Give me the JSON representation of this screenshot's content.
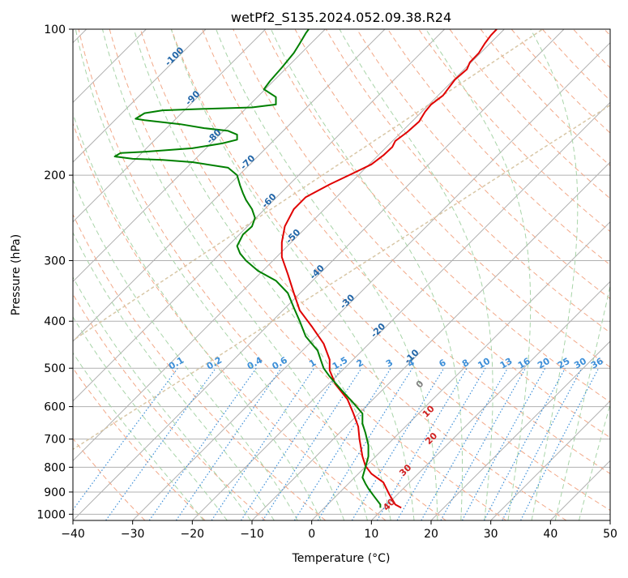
{
  "chart_data": {
    "type": "line",
    "title": "wetPf2_S135.2024.052.09.38.R24",
    "xlabel": "Temperature (°C)",
    "ylabel": "Pressure (hPa)",
    "xlim": [
      -40,
      50
    ],
    "ylim": [
      1030,
      100
    ],
    "yscale": "log",
    "grid": true,
    "x_ticks": [
      -40,
      -30,
      -20,
      -10,
      0,
      10,
      20,
      30,
      40,
      50
    ],
    "x_tick_labels": [
      "−40",
      "−30",
      "−20",
      "−10",
      "0",
      "10",
      "20",
      "30",
      "40",
      "50"
    ],
    "y_ticks": [
      100,
      200,
      300,
      400,
      500,
      600,
      700,
      800,
      900,
      1000
    ],
    "y_tick_labels": [
      "100",
      "200",
      "300",
      "400",
      "500",
      "600",
      "700",
      "800",
      "900",
      "1000"
    ],
    "series": [
      {
        "color": "#e00000",
        "points": [
          [
            15.0,
            970
          ],
          [
            14.0,
            955
          ],
          [
            13.0,
            910
          ],
          [
            12.0,
            860
          ],
          [
            10.0,
            825
          ],
          [
            9.0,
            795
          ],
          [
            8.5,
            760
          ],
          [
            8.0,
            700
          ],
          [
            7.8,
            660
          ],
          [
            7.0,
            620
          ],
          [
            6.0,
            580
          ],
          [
            4.0,
            540
          ],
          [
            3.0,
            505
          ],
          [
            3.0,
            480
          ],
          [
            2.0,
            445
          ],
          [
            0.0,
            410
          ],
          [
            -2.0,
            380
          ],
          [
            -3.0,
            350
          ],
          [
            -4.0,
            320
          ],
          [
            -5.0,
            295
          ],
          [
            -5.0,
            275
          ],
          [
            -4.5,
            255
          ],
          [
            -3.0,
            235
          ],
          [
            -1.0,
            222
          ],
          [
            3.0,
            209
          ],
          [
            7.0,
            198
          ],
          [
            10.0,
            190
          ],
          [
            12.0,
            182
          ],
          [
            13.5,
            175
          ],
          [
            14.0,
            170
          ],
          [
            16.0,
            163
          ],
          [
            18.0,
            155
          ],
          [
            19.0,
            148
          ],
          [
            20.0,
            143
          ],
          [
            22.0,
            137
          ],
          [
            24.0,
            127
          ],
          [
            26.0,
            121
          ],
          [
            26.5,
            117
          ],
          [
            28.0,
            112
          ],
          [
            29.0,
            107
          ],
          [
            30.0,
            103
          ],
          [
            31.0,
            100
          ]
        ]
      },
      {
        "color": "#008000",
        "points": [
          [
            11.5,
            970
          ],
          [
            11.5,
            955
          ],
          [
            10.5,
            920
          ],
          [
            9.5,
            885
          ],
          [
            9.0,
            865
          ],
          [
            8.5,
            840
          ],
          [
            9.0,
            800
          ],
          [
            9.5,
            760
          ],
          [
            9.5,
            720
          ],
          [
            9.0,
            680
          ],
          [
            8.5,
            650
          ],
          [
            8.5,
            620
          ],
          [
            7.0,
            590
          ],
          [
            5.0,
            555
          ],
          [
            3.0,
            520
          ],
          [
            2.0,
            500
          ],
          [
            1.5,
            480
          ],
          [
            1.0,
            460
          ],
          [
            -1.0,
            430
          ],
          [
            -2.0,
            400
          ],
          [
            -3.0,
            375
          ],
          [
            -4.0,
            350
          ],
          [
            -6.0,
            330
          ],
          [
            -9.0,
            315
          ],
          [
            -11.0,
            300
          ],
          [
            -12.0,
            290
          ],
          [
            -12.5,
            280
          ],
          [
            -11.5,
            265
          ],
          [
            -10.0,
            255
          ],
          [
            -9.5,
            245
          ],
          [
            -10.0,
            235
          ],
          [
            -11.0,
            225
          ],
          [
            -11.5,
            218
          ],
          [
            -12.0,
            210
          ],
          [
            -12.5,
            200
          ],
          [
            -14.0,
            193
          ],
          [
            -20.0,
            188
          ],
          [
            -25.0,
            186
          ],
          [
            -30.0,
            185
          ],
          [
            -33.0,
            183
          ],
          [
            -32.0,
            180
          ],
          [
            -28.0,
            179
          ],
          [
            -20.0,
            176
          ],
          [
            -15.0,
            172
          ],
          [
            -12.5,
            169
          ],
          [
            -12.5,
            165
          ],
          [
            -14.0,
            162
          ],
          [
            -18.0,
            160
          ],
          [
            -22.0,
            157
          ],
          [
            -28.0,
            154
          ],
          [
            -29.5,
            153
          ],
          [
            -28.0,
            149
          ],
          [
            -25.0,
            147
          ],
          [
            -18.0,
            146
          ],
          [
            -10.0,
            145
          ],
          [
            -6.0,
            143
          ],
          [
            -6.0,
            138
          ],
          [
            -8.0,
            133
          ],
          [
            -7.0,
            128
          ],
          [
            -5.0,
            120
          ],
          [
            -3.0,
            112
          ],
          [
            -2.0,
            107
          ],
          [
            -1.0,
            102
          ],
          [
            -0.5,
            100
          ]
        ]
      }
    ],
    "dry_adiabat_labels": [
      "-100",
      "-90",
      "-80",
      "-70",
      "-60",
      "-50",
      "-40",
      "-30",
      "-20",
      "-10"
    ],
    "mixing_ratio_labels": [
      "0.1",
      "0.2",
      "0.4",
      "0.6",
      "1",
      "1.5",
      "2",
      "3",
      "4",
      "6",
      "8",
      "10",
      "13",
      "16",
      "20",
      "25",
      "30",
      "36"
    ],
    "moist_adiabat_labels": [
      "0",
      "10",
      "20",
      "30",
      "40"
    ],
    "colors": {
      "isotherm": "#b0b0b0",
      "dry_adiabat": "#f2a888",
      "moist_adiabat": "#a8d4a8",
      "mixing_ratio": "#3d8fd8",
      "dry_label": "#2266a8",
      "mixing_label": "#3d8fd8",
      "moist_label_zero": "#808080",
      "moist_label": "#d02020",
      "tan_curve": "#d8c7a6"
    }
  }
}
